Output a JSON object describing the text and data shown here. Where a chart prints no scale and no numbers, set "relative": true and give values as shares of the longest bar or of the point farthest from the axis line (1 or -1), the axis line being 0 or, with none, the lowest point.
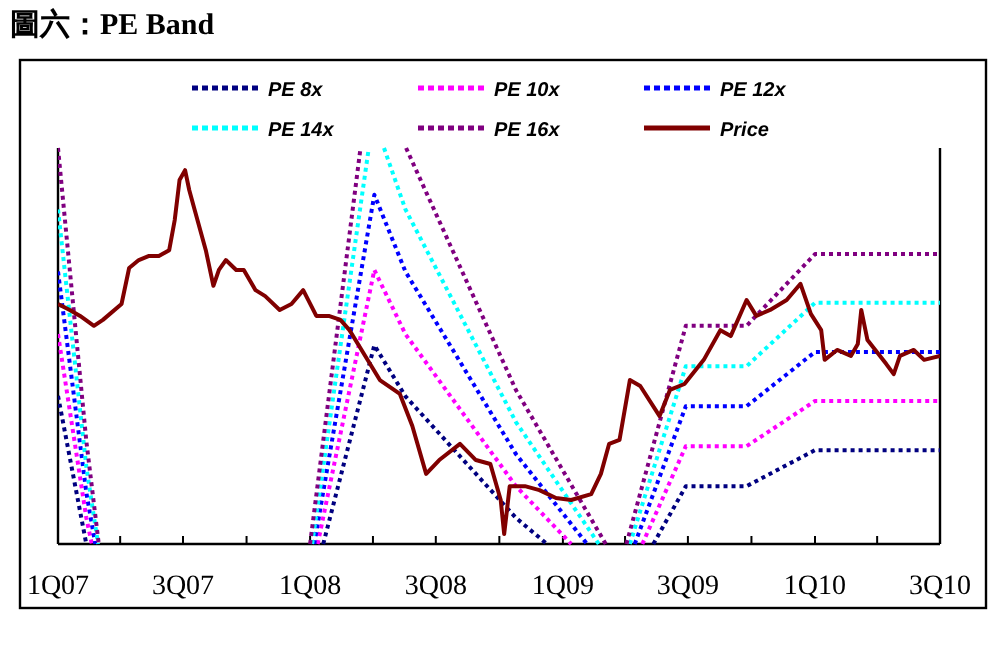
{
  "chart_data": {
    "type": "line",
    "title": "圖六：PE Band",
    "relative": true,
    "legend": "top",
    "xlim": [
      "2007-01-01",
      "2010-07-01"
    ],
    "xticks": [
      {
        "value": "2007-01-01",
        "label": "1Q07"
      },
      {
        "value": "2007-04-01",
        "label": null
      },
      {
        "value": "2007-07-01",
        "label": "3Q07"
      },
      {
        "value": "2007-10-01",
        "label": null
      },
      {
        "value": "2008-01-01",
        "label": "1Q08"
      },
      {
        "value": "2008-04-01",
        "label": null
      },
      {
        "value": "2008-07-01",
        "label": "3Q08"
      },
      {
        "value": "2008-10-01",
        "label": null
      },
      {
        "value": "2009-01-01",
        "label": "1Q09"
      },
      {
        "value": "2009-04-01",
        "label": null
      },
      {
        "value": "2009-07-01",
        "label": "3Q09"
      },
      {
        "value": "2009-10-01",
        "label": null
      },
      {
        "value": "2010-01-01",
        "label": "1Q10"
      },
      {
        "value": "2010-04-01",
        "label": null
      },
      {
        "value": "2010-07-01",
        "label": "3Q10"
      }
    ],
    "series": [
      {
        "name": "PE 8x",
        "color": "#000080",
        "line_style": "dotted",
        "x": [
          "2007-01-01",
          "2007-02-11",
          "2007-07-01",
          "2008-01-20",
          "2008-04-03",
          "2008-05-18",
          "2008-10-25",
          "2008-12-09",
          "2009-02-16",
          "2009-05-12",
          "2009-06-28",
          "2009-09-24",
          "2010-01-01",
          "2010-07-01"
        ],
        "values": [
          0.374,
          0,
          null,
          0,
          0.502,
          0.373,
          0.066,
          0,
          null,
          0,
          0.146,
          0.146,
          0.237,
          0.237
        ]
      },
      {
        "name": "PE 10x",
        "color": "#ff00ff",
        "line_style": "dotted",
        "x": [
          "2007-01-01",
          "2007-02-11",
          "2007-02-19",
          "2007-07-01",
          "2008-01-12",
          "2008-04-03",
          "2008-05-18",
          "2008-10-25",
          "2009-01-13",
          "2009-03-13",
          "2009-04-26",
          "2009-06-28",
          "2009-09-24",
          "2010-01-01",
          "2010-07-01"
        ],
        "values": [
          0.53,
          0.066,
          0,
          null,
          0,
          0.692,
          0.53,
          0.146,
          0,
          null,
          0,
          0.247,
          0.247,
          0.361,
          0.361
        ]
      },
      {
        "name": "PE 12x",
        "color": "#0000ff",
        "line_style": "dotted",
        "x": [
          "2007-01-01",
          "2007-02-11",
          "2007-02-24",
          "2007-07-01",
          "2008-01-07",
          "2008-04-03",
          "2008-05-18",
          "2008-10-25",
          "2009-02-05",
          "2009-03-13",
          "2009-04-15",
          "2009-06-28",
          "2009-09-24",
          "2010-01-01",
          "2010-07-01"
        ],
        "values": [
          0.688,
          0.13,
          0,
          null,
          0,
          0.882,
          0.688,
          0.227,
          0,
          null,
          0,
          0.348,
          0.348,
          0.485,
          0.485
        ]
      },
      {
        "name": "PE 14x",
        "color": "#00ffff",
        "line_style": "dotted",
        "x": [
          "2007-01-01",
          "2007-02-11",
          "2007-02-28",
          "2007-07-01",
          "2008-01-04",
          "2008-03-26",
          "2008-04-01",
          "2008-04-17",
          "2008-05-18",
          "2008-10-25",
          "2009-02-22",
          "2009-03-13",
          "2009-04-08",
          "2009-06-28",
          "2009-09-24",
          "2010-01-01",
          "2010-07-01"
        ],
        "values": [
          0.845,
          0.195,
          0,
          null,
          0,
          1,
          null,
          1,
          0.845,
          0.308,
          0,
          null,
          0,
          0.449,
          0.449,
          0.609,
          0.609
        ]
      },
      {
        "name": "PE 16x",
        "color": "#800080",
        "line_style": "dotted",
        "x": [
          "2007-01-01",
          "2007-02-11",
          "2007-03-01",
          "2007-07-01",
          "2008-01-01",
          "2008-03-14",
          "2008-04-01",
          "2008-05-19",
          "2008-10-25",
          "2009-03-04",
          "2009-03-13",
          "2009-04-03",
          "2009-06-28",
          "2009-09-24",
          "2010-01-01",
          "2010-07-01"
        ],
        "values": [
          1,
          0.26,
          0,
          null,
          0,
          1,
          null,
          1,
          0.389,
          0,
          null,
          0,
          0.551,
          0.551,
          0.732,
          0.732
        ]
      },
      {
        "name": "Price",
        "color": "#800000",
        "line_style": "solid",
        "x": [
          "2007-01-01",
          "2007-01-18",
          "2007-02-02",
          "2007-02-22",
          "2007-03-07",
          "2007-04-03",
          "2007-04-14",
          "2007-04-28",
          "2007-05-12",
          "2007-05-27",
          "2007-06-11",
          "2007-06-19",
          "2007-06-26",
          "2007-07-04",
          "2007-07-10",
          "2007-07-18",
          "2007-08-03",
          "2007-08-14",
          "2007-08-22",
          "2007-09-01",
          "2007-09-16",
          "2007-09-27",
          "2007-10-14",
          "2007-10-28",
          "2007-11-18",
          "2007-12-05",
          "2007-12-22",
          "2008-01-10",
          "2008-01-28",
          "2008-02-14",
          "2008-02-27",
          "2008-03-12",
          "2008-04-11",
          "2008-05-10",
          "2008-05-28",
          "2008-06-17",
          "2008-07-06",
          "2008-08-05",
          "2008-08-28",
          "2008-09-18",
          "2008-10-03",
          "2008-10-08",
          "2008-10-16",
          "2008-11-07",
          "2008-11-28",
          "2008-12-22",
          "2009-01-13",
          "2009-02-11",
          "2009-02-25",
          "2009-03-09",
          "2009-03-24",
          "2009-04-08",
          "2009-04-23",
          "2009-05-21",
          "2009-06-05",
          "2009-06-26",
          "2009-07-24",
          "2009-08-17",
          "2009-09-01",
          "2009-09-24",
          "2009-10-08",
          "2009-10-28",
          "2009-11-21",
          "2009-12-11",
          "2009-12-26",
          "2010-01-10",
          "2010-01-15",
          "2010-02-02",
          "2010-02-22",
          "2010-03-04",
          "2010-03-09",
          "2010-03-18",
          "2010-04-14",
          "2010-04-25",
          "2010-05-04",
          "2010-05-24",
          "2010-06-08",
          "2010-07-01"
        ],
        "values": [
          0.606,
          0.591,
          0.576,
          0.551,
          0.566,
          0.606,
          0.697,
          0.717,
          0.727,
          0.727,
          0.742,
          0.818,
          0.919,
          0.944,
          0.894,
          0.843,
          0.742,
          0.652,
          0.692,
          0.717,
          0.692,
          0.692,
          0.641,
          0.626,
          0.591,
          0.606,
          0.641,
          0.576,
          0.576,
          0.566,
          0.54,
          0.5,
          0.414,
          0.379,
          0.298,
          0.177,
          0.212,
          0.253,
          0.212,
          0.202,
          0.111,
          0.025,
          0.146,
          0.146,
          0.136,
          0.116,
          0.111,
          0.126,
          0.177,
          0.253,
          0.263,
          0.414,
          0.399,
          0.323,
          0.389,
          0.404,
          0.465,
          0.54,
          0.525,
          0.616,
          0.576,
          0.591,
          0.616,
          0.657,
          0.581,
          0.54,
          0.465,
          0.49,
          0.475,
          0.505,
          0.591,
          0.515,
          0.455,
          0.429,
          0.475,
          0.49,
          0.465,
          0.475
        ]
      }
    ]
  }
}
